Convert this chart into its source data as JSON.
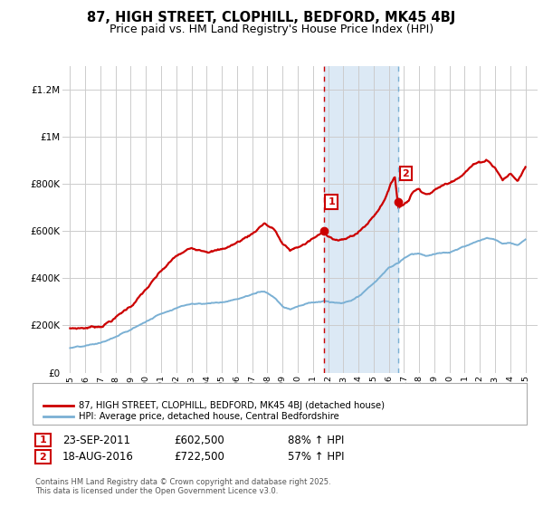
{
  "title": "87, HIGH STREET, CLOPHILL, BEDFORD, MK45 4BJ",
  "subtitle": "Price paid vs. HM Land Registry's House Price Index (HPI)",
  "ylabel_ticks": [
    "£0",
    "£200K",
    "£400K",
    "£600K",
    "£800K",
    "£1M",
    "£1.2M"
  ],
  "ytick_vals": [
    0,
    200000,
    400000,
    600000,
    800000,
    1000000,
    1200000
  ],
  "ylim": [
    0,
    1300000
  ],
  "sale1_x": 2011.73,
  "sale2_x": 2016.63,
  "sale1_price": 602500,
  "sale2_price": 722500,
  "red_color": "#cc0000",
  "blue_color": "#7ab0d4",
  "shade_color": "#dce9f5",
  "legend_label_red": "87, HIGH STREET, CLOPHILL, BEDFORD, MK45 4BJ (detached house)",
  "legend_label_blue": "HPI: Average price, detached house, Central Bedfordshire",
  "footer": "Contains HM Land Registry data © Crown copyright and database right 2025.\nThis data is licensed under the Open Government Licence v3.0.",
  "title_fontsize": 10.5,
  "subtitle_fontsize": 9,
  "tick_fontsize": 7.5,
  "grid_color": "#cccccc"
}
